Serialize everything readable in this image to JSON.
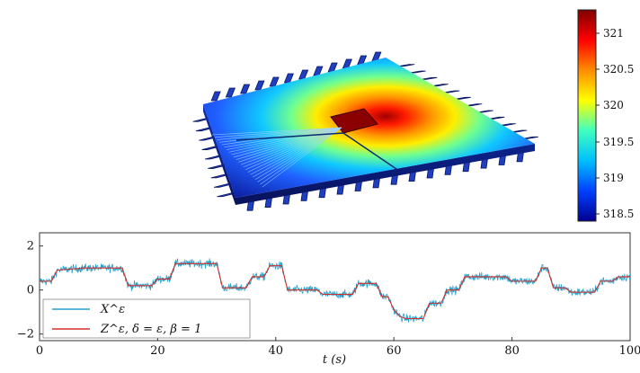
{
  "figure": {
    "colorbar": {
      "ticks": [
        "321",
        "320.5",
        "320",
        "319.5",
        "319",
        "318.5"
      ],
      "colors": [
        "#7f0000",
        "#ff0000",
        "#ff8c00",
        "#ffff00",
        "#40ffbf",
        "#00bfff",
        "#0040ff",
        "#00008f"
      ]
    },
    "colors": {
      "series_x": "#2a9fc8",
      "series_z": "#d0312d"
    }
  },
  "chart_data": {
    "type": "line",
    "xlabel": "t (s)",
    "xlim": [
      0,
      100
    ],
    "ylim": [
      -2.3,
      2.6
    ],
    "xticks": [
      "0",
      "20",
      "40",
      "60",
      "80",
      "100"
    ],
    "yticks": [
      "2",
      "0",
      "−2"
    ],
    "legend": {
      "placement": "bottom-left",
      "entries": [
        "X^ε",
        "Z^ε, δ = ε, β = 1"
      ]
    },
    "series": [
      {
        "name": "X^ε",
        "x": [
          0,
          2,
          3,
          7.5,
          8.5,
          14,
          15,
          19,
          20,
          22,
          23,
          30,
          31,
          35,
          36,
          38,
          39,
          41,
          42,
          47,
          48,
          53,
          54,
          57,
          58,
          59,
          60,
          61,
          62,
          65,
          66,
          68,
          69,
          71,
          72,
          79,
          80,
          84,
          85,
          86,
          87,
          89,
          90,
          94,
          95,
          97,
          98,
          100
        ],
        "y": [
          0.4,
          0.4,
          0.9,
          1.0,
          1.0,
          1.0,
          0.2,
          0.2,
          0.5,
          0.5,
          1.2,
          1.2,
          0.1,
          0.1,
          0.6,
          0.6,
          1.1,
          1.1,
          0.0,
          0.0,
          -0.2,
          -0.2,
          0.3,
          0.3,
          -0.3,
          -0.3,
          -0.9,
          -1.2,
          -1.3,
          -1.3,
          -0.6,
          -0.6,
          0.0,
          0.0,
          0.6,
          0.6,
          0.4,
          0.4,
          1.0,
          1.0,
          0.1,
          0.1,
          -0.1,
          -0.1,
          0.4,
          0.4,
          0.6,
          0.6
        ]
      },
      {
        "name": "Z^ε, δ = ε, β = 1",
        "x": [
          0,
          2,
          3,
          7.5,
          8.5,
          14,
          15,
          19,
          20,
          22,
          23,
          30,
          31,
          35,
          36,
          38,
          39,
          41,
          42,
          47,
          48,
          53,
          54,
          57,
          58,
          59,
          60,
          61,
          62,
          65,
          66,
          68,
          69,
          71,
          72,
          79,
          80,
          84,
          85,
          86,
          87,
          89,
          90,
          94,
          95,
          97,
          98,
          100
        ],
        "y": [
          0.4,
          0.4,
          0.9,
          1.0,
          1.0,
          1.0,
          0.2,
          0.2,
          0.5,
          0.5,
          1.2,
          1.2,
          0.1,
          0.1,
          0.6,
          0.6,
          1.1,
          1.1,
          0.0,
          0.0,
          -0.2,
          -0.2,
          0.3,
          0.3,
          -0.3,
          -0.3,
          -0.9,
          -1.2,
          -1.3,
          -1.3,
          -0.6,
          -0.6,
          0.0,
          0.0,
          0.6,
          0.6,
          0.4,
          0.4,
          1.0,
          1.0,
          0.1,
          0.1,
          -0.1,
          -0.1,
          0.4,
          0.4,
          0.6,
          0.6
        ]
      }
    ]
  }
}
